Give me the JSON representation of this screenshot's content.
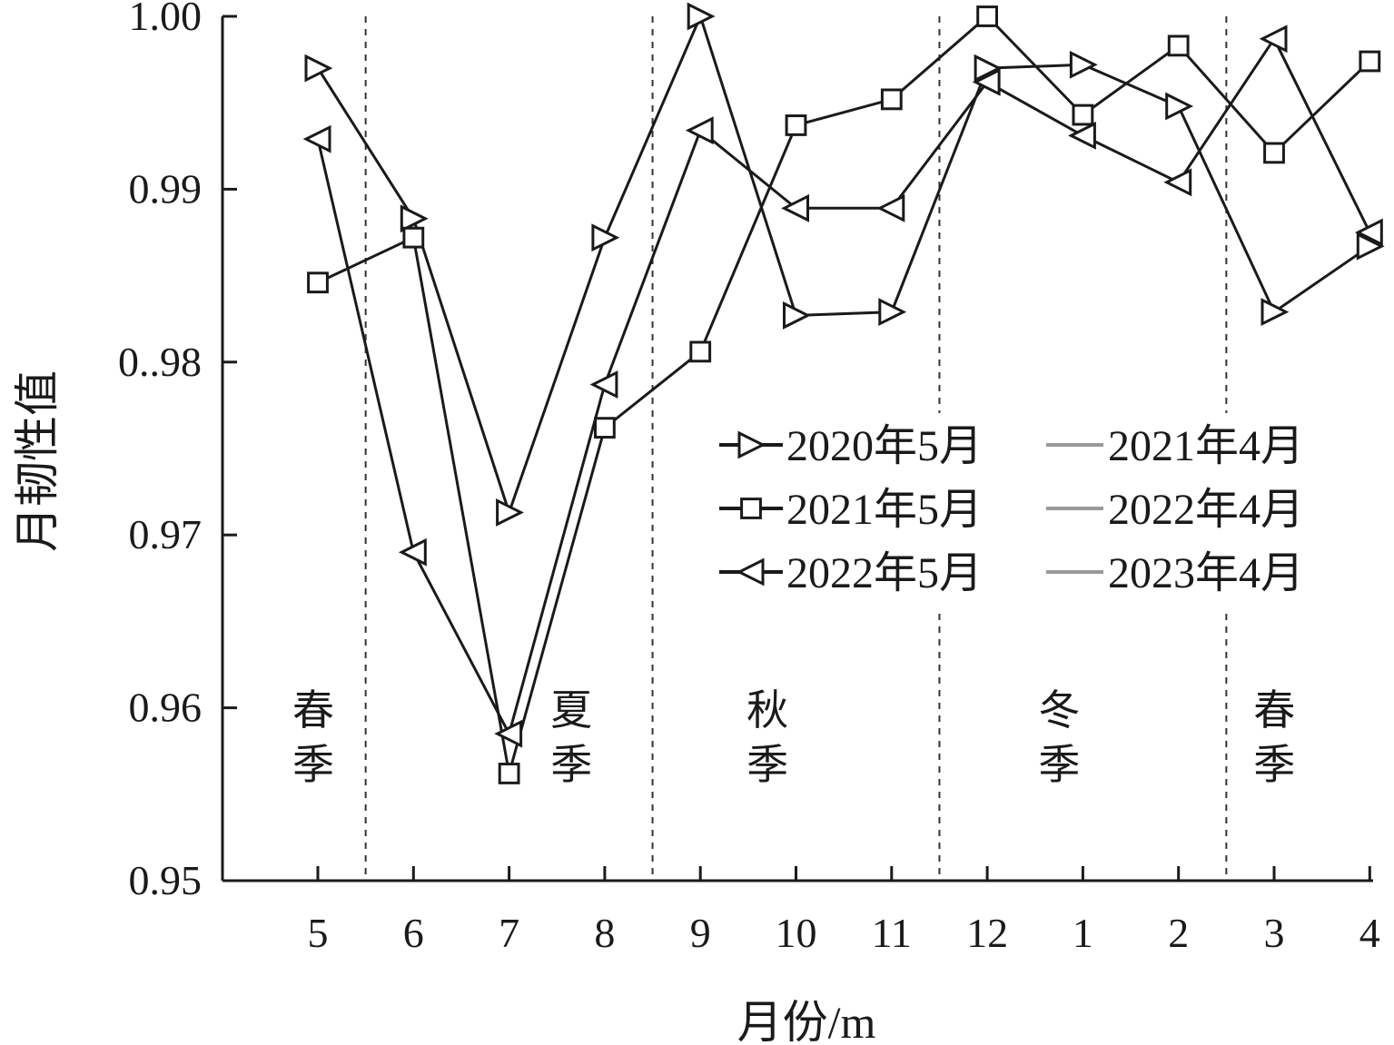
{
  "chart_data": {
    "type": "line",
    "ylabel": "月韧性值",
    "xlabel": "月份/m",
    "ylim": [
      0.95,
      1.0
    ],
    "y_ticks": [
      "0.95",
      "0.96",
      "0.97",
      "0..98",
      "0.99",
      "1.00"
    ],
    "y_tick_values": [
      0.95,
      0.96,
      0.97,
      0.98,
      0.99,
      1.0
    ],
    "categories": [
      "5",
      "6",
      "7",
      "8",
      "9",
      "10",
      "11",
      "12",
      "1",
      "2",
      "3",
      "4"
    ],
    "season_dividers_after_index": [
      0,
      3,
      6,
      9
    ],
    "seasons": [
      {
        "line1": "春",
        "line2": "季",
        "center_index": 0
      },
      {
        "line1": "夏",
        "line2": "季",
        "center_index": 2.7
      },
      {
        "line1": "秋",
        "line2": "季",
        "center_index": 4.75
      },
      {
        "line1": "冬",
        "line2": "季",
        "center_index": 7.8
      },
      {
        "line1": "春",
        "line2": "季",
        "center_index": 10.05
      }
    ],
    "series": [
      {
        "name": "2020年5月 — 2021年4月",
        "legend_left": "2020年5月",
        "legend_right": "2021年4月",
        "marker": "triangle-right",
        "values": [
          0.997,
          0.9883,
          0.9713,
          0.9872,
          1.0,
          0.9827,
          0.9829,
          0.997,
          0.9972,
          0.9948,
          0.9829,
          0.9867
        ]
      },
      {
        "name": "2021年5月 — 2022年4月",
        "legend_left": "2021年5月",
        "legend_right": "2022年4月",
        "marker": "square",
        "values": [
          0.9846,
          0.9872,
          0.9562,
          0.9762,
          0.9806,
          0.9937,
          0.9952,
          1.0,
          0.9943,
          0.9983,
          0.9921,
          0.9974
        ]
      },
      {
        "name": "2022年5月 — 2023年4月",
        "legend_left": "2022年5月",
        "legend_right": "2023年4月",
        "marker": "triangle-left",
        "values": [
          0.9929,
          0.969,
          0.9585,
          0.9787,
          0.9934,
          0.9889,
          0.9889,
          0.9962,
          0.9931,
          0.9904,
          0.9987,
          0.9875
        ]
      }
    ],
    "grid": false,
    "legend_position": "center-right"
  }
}
